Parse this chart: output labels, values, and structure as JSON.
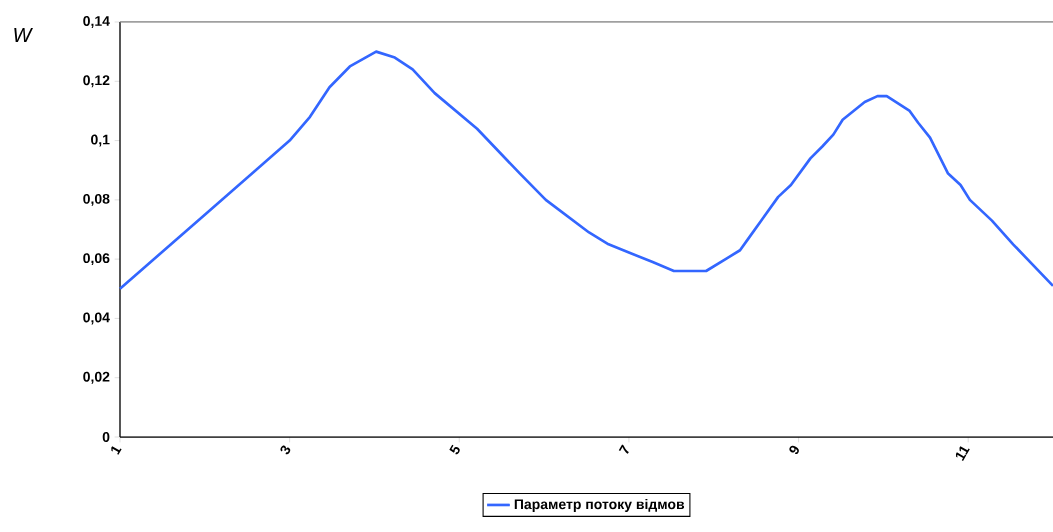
{
  "chart_data": {
    "type": "line",
    "ylabel": "W",
    "xlim": [
      1,
      12
    ],
    "xticks": [
      1,
      3,
      5,
      7,
      9,
      11
    ],
    "ylim": [
      0,
      0.14
    ],
    "yticks": [
      0,
      {
        "value": 0.02,
        "label": "0,02"
      },
      {
        "value": 0.04,
        "label": "0,04"
      },
      {
        "value": 0.06,
        "label": "0,06"
      },
      {
        "value": 0.08,
        "label": "0,08"
      },
      {
        "value": 0.1,
        "label": "0,1"
      },
      {
        "value": 0.12,
        "label": "0,12"
      },
      {
        "value": 0.14,
        "label": "0,14"
      }
    ],
    "grid": false,
    "legend": "bottom",
    "marker": "none",
    "line_style": "solid",
    "series": [
      {
        "name": "Параметр потоку відмов",
        "color": "#3366ff",
        "x": [
          1,
          2,
          3,
          3.24,
          3.47,
          3.71,
          4.02,
          4.24,
          4.45,
          4.71,
          5.21,
          5.71,
          6.02,
          6.53,
          6.76,
          7.28,
          7.53,
          7.73,
          7.91,
          8.14,
          8.31,
          8.41,
          8.76,
          8.91,
          9.14,
          9.28,
          9.41,
          9.52,
          9.78,
          9.93,
          10.04,
          10.15,
          10.31,
          10.41,
          10.55,
          10.76,
          10.91,
          11.02,
          11.28,
          11.53,
          12
        ],
        "values": [
          0.05,
          0.075,
          0.1,
          0.108,
          0.118,
          0.125,
          0.13,
          0.128,
          0.124,
          0.116,
          0.104,
          0.089,
          0.08,
          0.069,
          0.065,
          0.059,
          0.056,
          0.056,
          0.056,
          0.06,
          0.063,
          0.067,
          0.081,
          0.085,
          0.094,
          0.098,
          0.102,
          0.107,
          0.113,
          0.115,
          0.115,
          0.113,
          0.11,
          0.106,
          0.101,
          0.089,
          0.085,
          0.08,
          0.073,
          0.065,
          0.051
        ]
      }
    ]
  }
}
